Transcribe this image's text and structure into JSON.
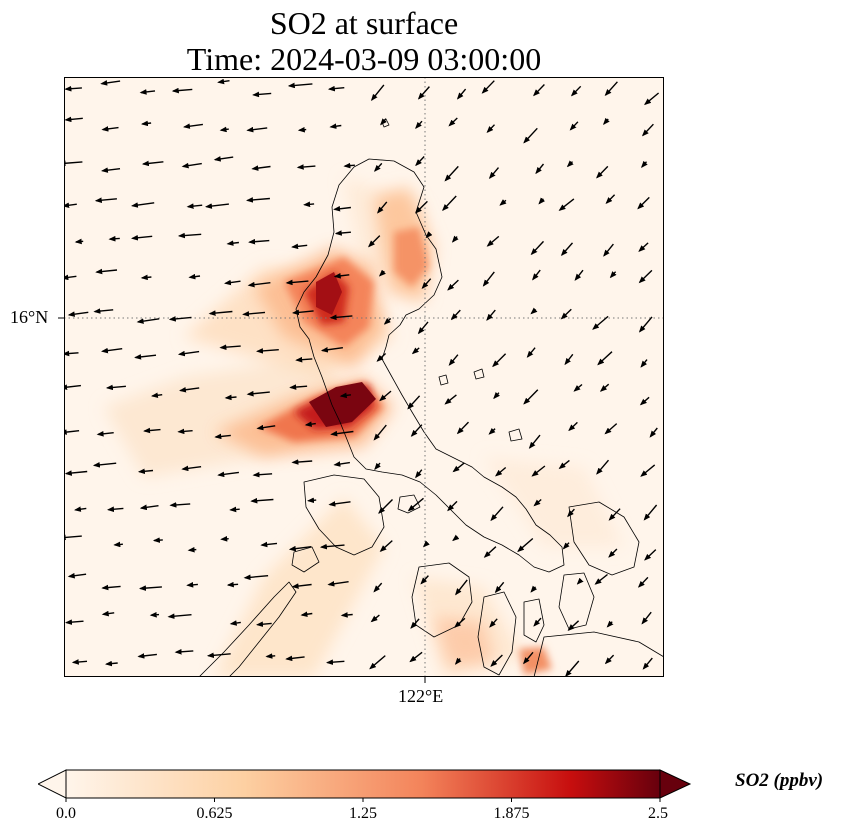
{
  "title": {
    "line1": "SO2 at surface",
    "line2": "Time: 2024-03-09 03:00:00"
  },
  "axes": {
    "lat_label": "16°N",
    "lon_label": "122°E",
    "gridlines": "dotted",
    "lat_gridline": 16,
    "lon_gridline": 122
  },
  "colorbar": {
    "label": "SO2 (ppbv)",
    "ticks": [
      "0.0",
      "0.625",
      "1.25",
      "1.875",
      "2.5"
    ],
    "range": [
      0,
      2.5
    ],
    "extend": "both",
    "colors": [
      "#fff5eb",
      "#fdd0a2",
      "#f3835a",
      "#c70e0e",
      "#67000d"
    ]
  },
  "map": {
    "background_color": "#fff5eb",
    "plumes": [
      {
        "name": "northern-plume-core",
        "value": 2.3
      },
      {
        "name": "southern-plume-core",
        "value": 2.5
      },
      {
        "name": "northeast-plume",
        "value": 1.4
      },
      {
        "name": "southeast-plume",
        "value": 1.3
      }
    ]
  }
}
